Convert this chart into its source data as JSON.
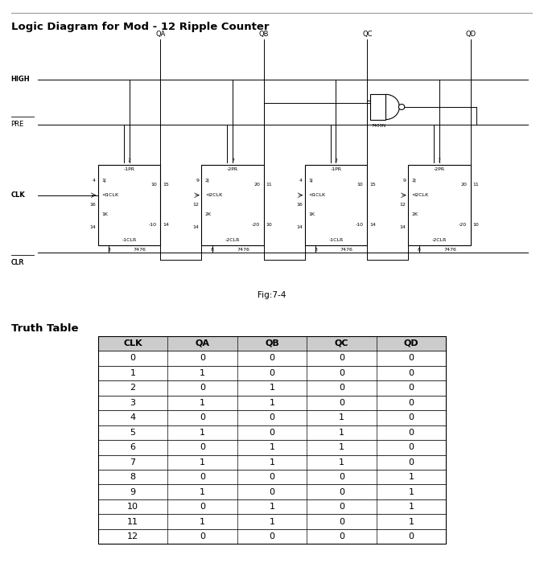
{
  "title": "Logic Diagram for Mod - 12 Ripple Counter",
  "truth_table_title": "Truth Table",
  "fig_caption": "Fig:7-4",
  "columns": [
    "CLK",
    "QA",
    "QB",
    "QC",
    "QD"
  ],
  "rows": [
    [
      0,
      0,
      0,
      0,
      0
    ],
    [
      1,
      1,
      0,
      0,
      0
    ],
    [
      2,
      0,
      1,
      0,
      0
    ],
    [
      3,
      1,
      1,
      0,
      0
    ],
    [
      4,
      0,
      0,
      1,
      0
    ],
    [
      5,
      1,
      0,
      1,
      0
    ],
    [
      6,
      0,
      1,
      1,
      0
    ],
    [
      7,
      1,
      1,
      1,
      0
    ],
    [
      8,
      0,
      0,
      0,
      1
    ],
    [
      9,
      1,
      0,
      0,
      1
    ],
    [
      10,
      0,
      1,
      0,
      1
    ],
    [
      11,
      1,
      1,
      0,
      1
    ],
    [
      12,
      0,
      0,
      0,
      0
    ]
  ],
  "ff1_labels": {
    "-1PR": "top",
    "-1CLR": "bottom",
    "1J": "left_top",
    "1CLK": "left_mid",
    "1K": "left_bot",
    "10": "right_top",
    "-10": "right_bot"
  },
  "ff2_labels": {
    "-2PR": "top",
    "-2CLR": "bottom",
    "2J": "left_top",
    "2CLK": "left_mid",
    "2K": "left_bot",
    "20": "right_top",
    "-20": "right_bot"
  },
  "ff1_pins": {
    "pr": "2",
    "clr": "3",
    "j": "4",
    "clk": "16",
    "k": "14",
    "q": "15",
    "qn": "14",
    "chip": "7476"
  },
  "ff2_pins": {
    "pr": "7",
    "clr": "8",
    "j": "9",
    "clk": "12",
    "k": "14",
    "q": "11",
    "qn": "10",
    "chip": "7476"
  },
  "nand_chip": "7400N",
  "background_color": "#ffffff"
}
